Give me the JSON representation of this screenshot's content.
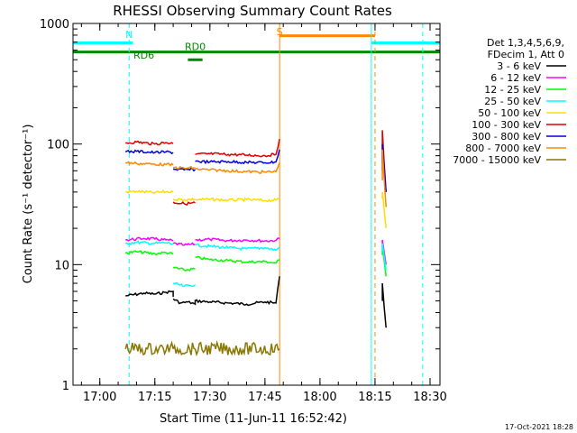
{
  "chart_data": {
    "type": "line",
    "title": "RHESSI Observing Summary Count Rates",
    "xlabel": "Start Time (11-Jun-11 16:52:42)",
    "ylabel": "Count Rate (s⁻¹ detector⁻¹)",
    "y_scale": "log",
    "ylim": [
      1,
      1000
    ],
    "xlim": [
      "16:52:42",
      "18:32:42"
    ],
    "x_ticks": [
      "17:00",
      "17:15",
      "17:30",
      "17:45",
      "18:00",
      "18:15",
      "18:30"
    ],
    "y_ticks": [
      "1",
      "10",
      "100",
      "1000"
    ],
    "legend_header": [
      "Det 1,3,4,5,6,9,",
      "FDecim 1, Att 0"
    ],
    "legend_placement": "right",
    "series": [
      {
        "name": "3 - 6 keV",
        "color": "#000000",
        "segments": [
          {
            "x": [
              "17:07",
              "17:12",
              "17:15",
              "17:18",
              "17:20",
              "17:20"
            ],
            "y": [
              5.5,
              5.8,
              5.7,
              5.9,
              6.0,
              5.4
            ]
          },
          {
            "x": [
              "17:20",
              "17:22",
              "17:24",
              "17:26",
              "17:26"
            ],
            "y": [
              5.2,
              4.8,
              4.9,
              4.7,
              5.1
            ]
          },
          {
            "x": [
              "17:26",
              "17:30",
              "17:35",
              "17:40",
              "17:45",
              "17:48",
              "17:49"
            ],
            "y": [
              5.0,
              4.9,
              4.8,
              4.7,
              4.9,
              4.8,
              8.0
            ]
          },
          {
            "x": [
              "18:17",
              "18:17",
              "18:18"
            ],
            "y": [
              5.0,
              7.0,
              3.0
            ]
          }
        ]
      },
      {
        "name": "6 - 12 keV",
        "color": "#ff00ff",
        "segments": [
          {
            "x": [
              "17:07",
              "17:12",
              "17:15",
              "17:18",
              "17:20"
            ],
            "y": [
              16,
              16.5,
              16.3,
              16.0,
              15.8
            ]
          },
          {
            "x": [
              "17:20",
              "17:23",
              "17:26"
            ],
            "y": [
              15,
              14.5,
              14.8
            ]
          },
          {
            "x": [
              "17:26",
              "17:30",
              "17:35",
              "17:40",
              "17:45",
              "17:48",
              "17:49"
            ],
            "y": [
              16,
              16.2,
              15.8,
              16.0,
              15.7,
              15.9,
              16.5
            ]
          },
          {
            "x": [
              "18:17",
              "18:17",
              "18:18"
            ],
            "y": [
              14,
              16,
              10
            ]
          }
        ]
      },
      {
        "name": "12 - 25 keV",
        "color": "#00ff00",
        "segments": [
          {
            "x": [
              "17:07",
              "17:10",
              "17:15",
              "17:18",
              "17:20"
            ],
            "y": [
              12.5,
              12.8,
              12.3,
              12.6,
              12.2
            ]
          },
          {
            "x": [
              "17:20",
              "17:23",
              "17:26"
            ],
            "y": [
              9.5,
              9.0,
              9.2
            ]
          },
          {
            "x": [
              "17:26",
              "17:30",
              "17:35",
              "17:40",
              "17:45",
              "17:48",
              "17:49"
            ],
            "y": [
              11.5,
              11.0,
              10.8,
              10.5,
              10.6,
              10.3,
              11.0
            ]
          },
          {
            "x": [
              "18:17",
              "18:17",
              "18:18"
            ],
            "y": [
              12,
              14,
              8
            ]
          }
        ]
      },
      {
        "name": "25 - 50 keV",
        "color": "#00ffff",
        "segments": [
          {
            "x": [
              "17:07",
              "17:10",
              "17:15",
              "17:18",
              "17:20"
            ],
            "y": [
              15,
              15.3,
              15.0,
              15.2,
              14.8
            ]
          },
          {
            "x": [
              "17:20",
              "17:23",
              "17:26"
            ],
            "y": [
              7.0,
              6.6,
              6.8
            ]
          },
          {
            "x": [
              "17:26",
              "17:30",
              "17:35",
              "17:40",
              "17:45",
              "17:48",
              "17:49"
            ],
            "y": [
              14.5,
              14.2,
              13.8,
              13.5,
              13.8,
              13.2,
              14.0
            ]
          },
          {
            "x": [
              "18:17",
              "18:17",
              "18:18"
            ],
            "y": [
              13,
              15,
              9
            ]
          }
        ]
      },
      {
        "name": "50 - 100 keV",
        "color": "#ffdd00",
        "segments": [
          {
            "x": [
              "17:07",
              "17:10",
              "17:15",
              "17:18",
              "17:20"
            ],
            "y": [
              40,
              40.5,
              39.5,
              40.2,
              39.8
            ]
          },
          {
            "x": [
              "17:20",
              "17:23",
              "17:26"
            ],
            "y": [
              35,
              34.5,
              34.8
            ]
          },
          {
            "x": [
              "17:26",
              "17:30",
              "17:35",
              "17:40",
              "17:45",
              "17:48",
              "17:49"
            ],
            "y": [
              34.5,
              34.8,
              34.2,
              34.6,
              34.0,
              34.3,
              35.0
            ]
          },
          {
            "x": [
              "18:17",
              "18:17",
              "18:18"
            ],
            "y": [
              35,
              40,
              20
            ]
          }
        ]
      },
      {
        "name": "100 - 300 keV",
        "color": "#dd0000",
        "segments": [
          {
            "x": [
              "17:07",
              "17:10",
              "17:15",
              "17:18",
              "17:20"
            ],
            "y": [
              102,
              104,
              100,
              103,
              101
            ]
          },
          {
            "x": [
              "17:20",
              "17:23",
              "17:26"
            ],
            "y": [
              33,
              32,
              32.5
            ]
          },
          {
            "x": [
              "17:26",
              "17:30",
              "17:35",
              "17:40",
              "17:45",
              "17:48",
              "17:49"
            ],
            "y": [
              82,
              83,
              82,
              81,
              80,
              82,
              110
            ]
          },
          {
            "x": [
              "18:17",
              "18:17",
              "18:18"
            ],
            "y": [
              70,
              130,
              40
            ]
          }
        ]
      },
      {
        "name": "300 - 800 keV",
        "color": "#0000dd",
        "segments": [
          {
            "x": [
              "17:07",
              "17:10",
              "17:15",
              "17:18",
              "17:20"
            ],
            "y": [
              86,
              87,
              85,
              86,
              85
            ]
          },
          {
            "x": [
              "17:20",
              "17:23",
              "17:26"
            ],
            "y": [
              62,
              61,
              61.5
            ]
          },
          {
            "x": [
              "17:26",
              "17:30",
              "17:35",
              "17:40",
              "17:45",
              "17:48",
              "17:49"
            ],
            "y": [
              72,
              71,
              71.5,
              70.5,
              70,
              71,
              90
            ]
          },
          {
            "x": [
              "18:17",
              "18:17",
              "18:18"
            ],
            "y": [
              60,
              100,
              40
            ]
          }
        ]
      },
      {
        "name": "800 - 7000 keV",
        "color": "#ff8800",
        "segments": [
          {
            "x": [
              "17:07",
              "17:10",
              "17:15",
              "17:18",
              "17:20"
            ],
            "y": [
              70,
              69,
              68,
              67.5,
              67
            ]
          },
          {
            "x": [
              "17:20",
              "17:23",
              "17:26"
            ],
            "y": [
              64,
              63,
              63.5
            ]
          },
          {
            "x": [
              "17:26",
              "17:30",
              "17:35",
              "17:40",
              "17:45",
              "17:48",
              "17:49"
            ],
            "y": [
              62,
              61,
              60,
              59,
              58.5,
              59,
              70
            ]
          },
          {
            "x": [
              "18:17",
              "18:17",
              "18:18"
            ],
            "y": [
              50,
              90,
              30
            ]
          }
        ]
      },
      {
        "name": "7000 - 15000 keV",
        "color": "#887700",
        "segments": [
          {
            "x": [
              "17:07",
              "17:13",
              "17:20"
            ],
            "y": [
              2,
              2,
              2
            ]
          },
          {
            "x": [
              "17:20",
              "17:26"
            ],
            "y": [
              2,
              2
            ]
          },
          {
            "x": [
              "17:26",
              "17:49"
            ],
            "y": [
              2,
              2
            ]
          }
        ]
      }
    ],
    "annotations": [
      {
        "text": "N",
        "x": "17:08",
        "y": 760,
        "color": "#00ffff"
      },
      {
        "text": "S",
        "x": "17:49",
        "y": 800,
        "color": "#ff8800"
      },
      {
        "text": "RD0",
        "x": "17:26",
        "y": 600,
        "color": "#008800"
      },
      {
        "text": "RD6",
        "x": "17:12",
        "y": 510,
        "color": "#008800"
      }
    ],
    "bars": [
      {
        "name": "night",
        "color": "#00ffff",
        "y": 690,
        "intervals": [
          [
            "16:52:42",
            "17:09"
          ],
          [
            "18:14",
            "18:32:42"
          ]
        ]
      },
      {
        "name": "saa",
        "color": "#ff8800",
        "y": 790,
        "intervals": [
          [
            "17:49",
            "18:15"
          ]
        ]
      },
      {
        "name": "rd0",
        "color": "#008800",
        "y": 580,
        "intervals": [
          [
            "16:52:42",
            "18:32:42"
          ]
        ]
      },
      {
        "name": "rd6",
        "color": "#008800",
        "y": 500,
        "intervals": [
          [
            "17:24",
            "17:28"
          ]
        ]
      }
    ],
    "vlines": [
      {
        "x": "16:52:42",
        "color": "#00ffff",
        "style": "solid"
      },
      {
        "x": "17:08",
        "color": "#00ffff",
        "style": "dashed"
      },
      {
        "x": "17:49",
        "color": "#ff8800",
        "style": "solid"
      },
      {
        "x": "18:14",
        "color": "#00ffff",
        "style": "solid"
      },
      {
        "x": "18:15",
        "color": "#ff8800",
        "style": "dashed"
      },
      {
        "x": "18:28",
        "color": "#00ffff",
        "style": "dashed"
      }
    ]
  },
  "footer": {
    "timestamp": "17-Oct-2021 18:28"
  }
}
